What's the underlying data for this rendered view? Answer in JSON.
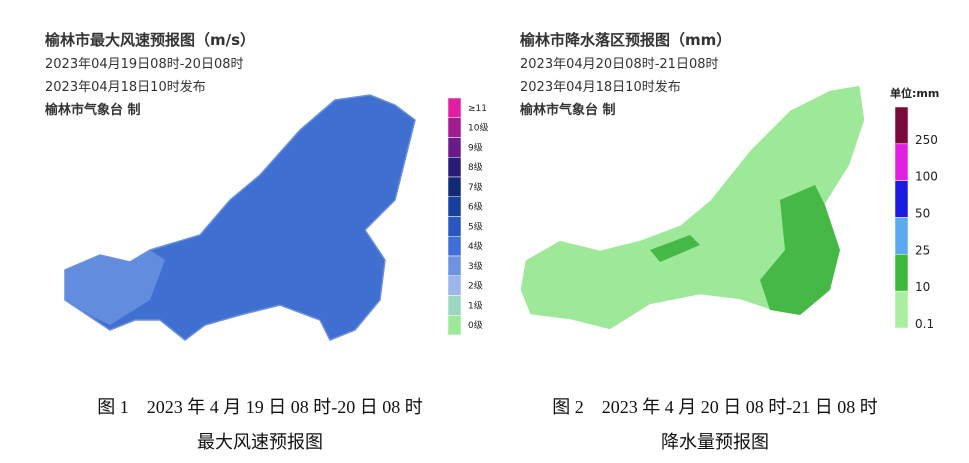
{
  "figures": [
    {
      "header": [
        "榆林市最大风速预报图（m/s）",
        "2023年04月19日08时-20日08时",
        "2023年04月18日10时发布",
        "榆林市气象台 制"
      ],
      "legend": {
        "labels": [
          "≥11",
          "10级",
          "9级",
          "8级",
          "7级",
          "6级",
          "5级",
          "4级",
          "3级",
          "2级",
          "1级",
          "0级"
        ]
      },
      "caption": [
        "图 1　2023 年 4 月 19 日 08 时-20 日 08 时",
        "最大风速预报图"
      ]
    },
    {
      "header": [
        "榆林市降水落区预报图（mm）",
        "2023年04月20日08时-21日08时",
        "2023年04月18日10时发布",
        "榆林市气象台 制"
      ],
      "legend": {
        "title": "单位:mm",
        "labels": [
          "250",
          "100",
          "50",
          "25",
          "10",
          "0.1"
        ]
      },
      "caption": [
        "图 2　2023 年 4 月 20 日 08 时-21 日 08 时",
        "降水量预报图"
      ]
    }
  ]
}
